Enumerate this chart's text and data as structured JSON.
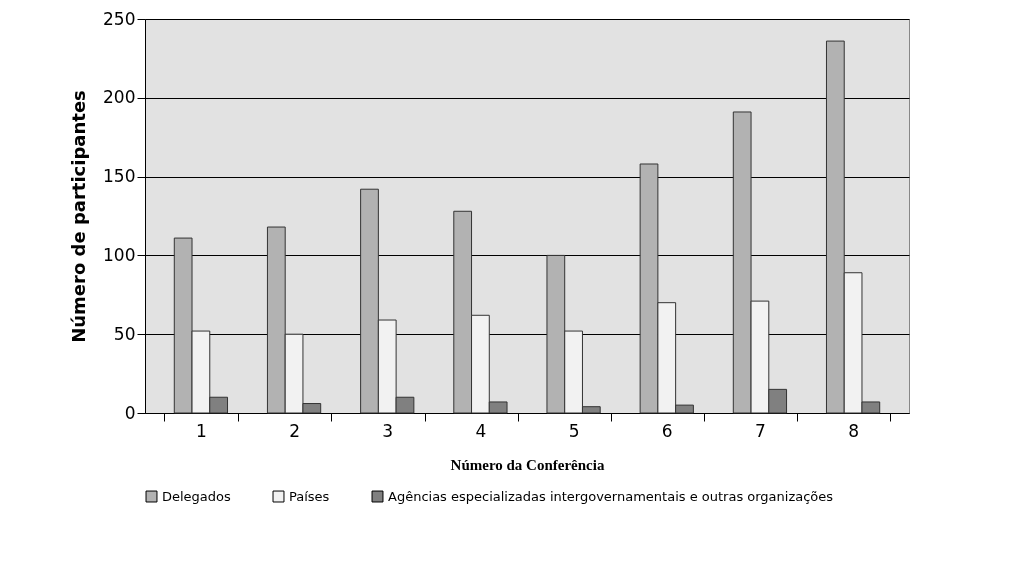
{
  "chart_data": {
    "type": "bar",
    "xlabel": "Número da Conferência",
    "ylabel": "Número de participantes",
    "categories": [
      "1",
      "2",
      "3",
      "4",
      "5",
      "6",
      "7",
      "8"
    ],
    "series": [
      {
        "name": "Delegados",
        "color": "#b2b2b2",
        "values": [
          111,
          118,
          142,
          128,
          100,
          158,
          191,
          236
        ]
      },
      {
        "name": "Países",
        "color": "#f2f2f2",
        "values": [
          52,
          50,
          59,
          62,
          52,
          70,
          71,
          89
        ]
      },
      {
        "name": "Agências especializadas intergovernamentais e outras organizações",
        "color": "#808080",
        "values": [
          10,
          6,
          10,
          7,
          4,
          5,
          15,
          7
        ]
      }
    ],
    "ylim": [
      0,
      250
    ],
    "yticks": [
      0,
      50,
      100,
      150,
      200,
      250
    ],
    "grid": "y",
    "legend": "bottom"
  }
}
